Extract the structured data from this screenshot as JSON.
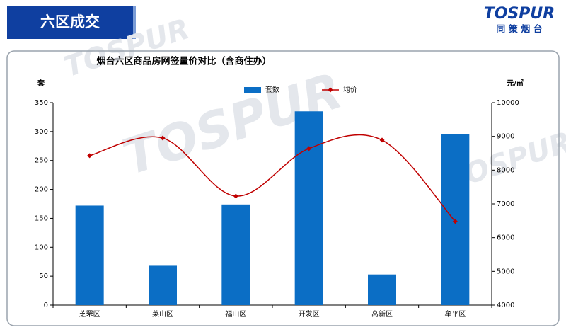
{
  "header": {
    "title": "六区成交",
    "logo": "TOSPUR",
    "logo_sub": "同 策 烟 台"
  },
  "watermark": "TOSPUR",
  "chart_data": {
    "type": "bar-line",
    "title": "烟台六区商品房网签量价对比（含商住办）",
    "y_label": "套",
    "y2_label": "元/㎡",
    "categories": [
      "芝罘区",
      "莱山区",
      "福山区",
      "开发区",
      "高新区",
      "牟平区"
    ],
    "series": [
      {
        "name": "套数",
        "type": "bar",
        "color": "#0b6ec5",
        "values": [
          172,
          68,
          174,
          335,
          53,
          296
        ]
      },
      {
        "name": "均价",
        "type": "line",
        "axis": "y2",
        "color": "#c00000",
        "values": [
          8430,
          8950,
          7230,
          8640,
          8890,
          6480
        ]
      }
    ],
    "ylim": [
      0,
      350
    ],
    "yticks": [
      0,
      50,
      100,
      150,
      200,
      250,
      300,
      350
    ],
    "y2lim": [
      4000,
      10000
    ],
    "y2ticks": [
      4000,
      5000,
      6000,
      7000,
      8000,
      9000,
      10000
    ],
    "grid": false,
    "legend": "top"
  }
}
